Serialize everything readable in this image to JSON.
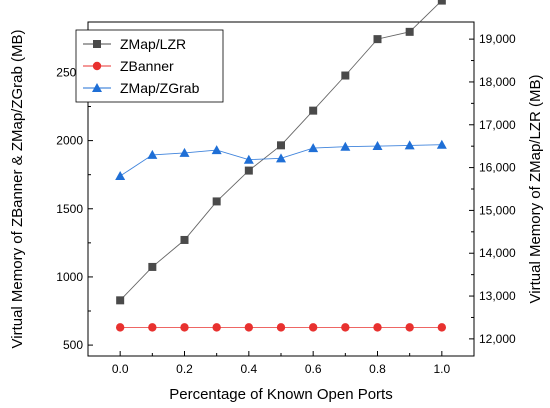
{
  "chart_data": {
    "type": "line",
    "xlabel": "Percentage of Known Open Ports",
    "ylabel_left": "Virtual Memory of ZBanner & ZMap/ZGrab (MB)",
    "ylabel_right": "Virtual Memory of ZMap/LZR (MB)",
    "x": [
      0.0,
      0.1,
      0.2,
      0.3,
      0.4,
      0.5,
      0.6,
      0.7,
      0.8,
      0.9,
      1.0
    ],
    "xlim": [
      -0.1,
      1.1
    ],
    "ylim_left": [
      420,
      2870
    ],
    "ylim_right": [
      11600,
      19400
    ],
    "x_ticks": [
      0.0,
      0.2,
      0.4,
      0.6,
      0.8,
      1.0
    ],
    "x_tick_labels": [
      "0.0",
      "0.2",
      "0.4",
      "0.6",
      "0.8",
      "1.0"
    ],
    "y_left_ticks": [
      500,
      1000,
      1500,
      2000,
      2500
    ],
    "y_left_tick_labels": [
      "500",
      "1000",
      "1500",
      "2000",
      "2500"
    ],
    "y_right_ticks": [
      12000,
      13000,
      14000,
      15000,
      16000,
      17000,
      18000,
      19000
    ],
    "y_right_tick_labels": [
      "12,000",
      "13,000",
      "14,000",
      "15,000",
      "16,000",
      "17,000",
      "18,000",
      "19,000"
    ],
    "grid": false,
    "legend_position": "top-left",
    "series": [
      {
        "name": "ZMap/LZR",
        "axis": "right",
        "marker": "square",
        "color": "#4a4a4a",
        "values": [
          12900,
          13680,
          14310,
          15210,
          15930,
          16520,
          17330,
          18150,
          19000,
          19170,
          19900
        ]
      },
      {
        "name": "ZBanner",
        "axis": "left",
        "marker": "circle",
        "color": "#e8312f",
        "values": [
          630,
          630,
          630,
          630,
          630,
          630,
          630,
          630,
          630,
          630,
          630
        ]
      },
      {
        "name": "ZMap/ZGrab",
        "axis": "left",
        "marker": "triangle",
        "color": "#1f6fd6",
        "values": [
          1740,
          1895,
          1910,
          1930,
          1860,
          1870,
          1945,
          1955,
          1960,
          1965,
          1970
        ]
      }
    ]
  }
}
